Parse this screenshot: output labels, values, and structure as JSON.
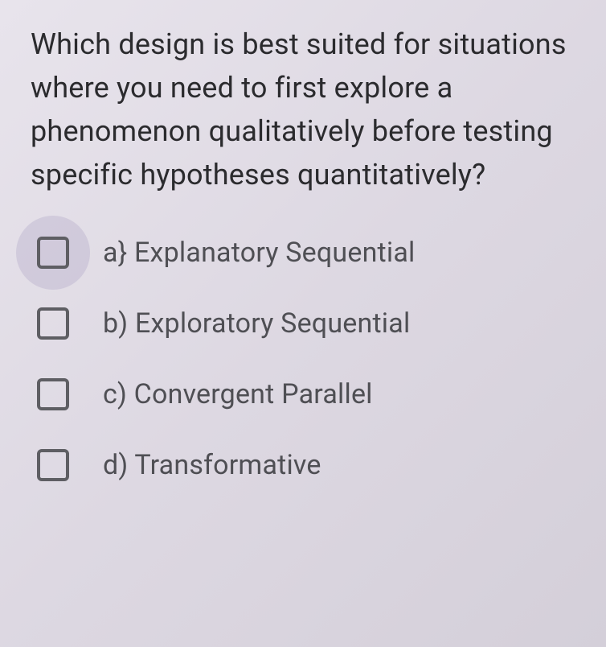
{
  "question": {
    "text": "Which design is best suited for situations where you need to first explore a phenomenon qualitatively before testing specific hypotheses quantitatively?"
  },
  "options": [
    {
      "label": "a} Explanatory Sequential",
      "checked": false,
      "highlighted": true
    },
    {
      "label": "b) Exploratory Sequential",
      "checked": false,
      "highlighted": false
    },
    {
      "label": "c) Convergent Parallel",
      "checked": false,
      "highlighted": false
    },
    {
      "label": "d) Transformative",
      "checked": false,
      "highlighted": false
    }
  ],
  "colors": {
    "text_primary": "#2b2b2e",
    "text_secondary": "#4f4f54",
    "checkbox_border": "#5e5e63",
    "ripple": "rgba(160,150,190,0.28)",
    "background_start": "#e8e4ec",
    "background_end": "#d4cfd9"
  },
  "typography": {
    "question_fontsize": 36,
    "option_fontsize": 34,
    "font_family": "Roboto, Arial, sans-serif"
  }
}
